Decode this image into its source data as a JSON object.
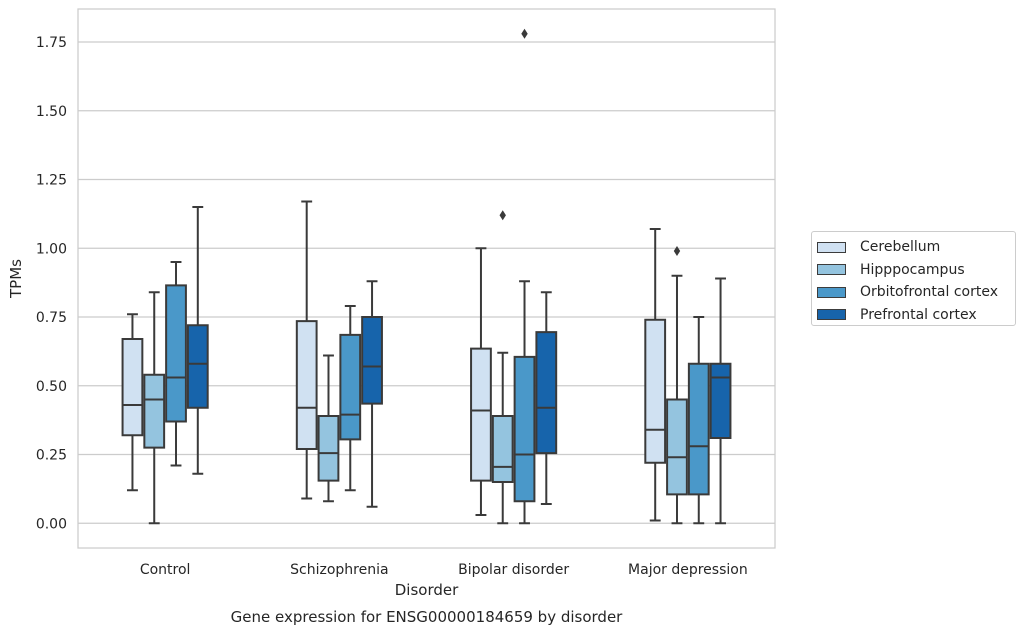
{
  "chart_data": {
    "type": "box",
    "title": "Gene expression for ENSG00000184659 by disorder",
    "xlabel": "Disorder",
    "ylabel": "TPMs",
    "ylim": [
      -0.09,
      1.87
    ],
    "yticks": [
      "0.00",
      "0.25",
      "0.50",
      "0.75",
      "1.00",
      "1.25",
      "1.50",
      "1.75"
    ],
    "categories": [
      "Control",
      "Schizophrenia",
      "Bipolar disorder",
      "Major depression"
    ],
    "grid": "horizontal",
    "legend_position": "right",
    "series": [
      {
        "name": "Cerebellum",
        "color": "#d0e1f2",
        "boxes": [
          {
            "whisker_low": 0.12,
            "q1": 0.32,
            "median": 0.43,
            "q3": 0.67,
            "whisker_high": 0.76,
            "outliers": []
          },
          {
            "whisker_low": 0.09,
            "q1": 0.27,
            "median": 0.42,
            "q3": 0.735,
            "whisker_high": 1.17,
            "outliers": []
          },
          {
            "whisker_low": 0.03,
            "q1": 0.155,
            "median": 0.41,
            "q3": 0.635,
            "whisker_high": 1.0,
            "outliers": []
          },
          {
            "whisker_low": 0.01,
            "q1": 0.22,
            "median": 0.34,
            "q3": 0.74,
            "whisker_high": 1.07,
            "outliers": []
          }
        ]
      },
      {
        "name": "Hipppocampus",
        "color": "#94c4df",
        "boxes": [
          {
            "whisker_low": 0.0,
            "q1": 0.275,
            "median": 0.45,
            "q3": 0.54,
            "whisker_high": 0.84,
            "outliers": []
          },
          {
            "whisker_low": 0.08,
            "q1": 0.155,
            "median": 0.255,
            "q3": 0.39,
            "whisker_high": 0.61,
            "outliers": []
          },
          {
            "whisker_low": 0.0,
            "q1": 0.15,
            "median": 0.205,
            "q3": 0.39,
            "whisker_high": 0.62,
            "outliers": [
              1.12
            ]
          },
          {
            "whisker_low": 0.0,
            "q1": 0.105,
            "median": 0.24,
            "q3": 0.45,
            "whisker_high": 0.9,
            "outliers": [
              0.99
            ]
          }
        ]
      },
      {
        "name": "Orbitofrontal cortex",
        "color": "#4a98c9",
        "boxes": [
          {
            "whisker_low": 0.21,
            "q1": 0.37,
            "median": 0.53,
            "q3": 0.865,
            "whisker_high": 0.95,
            "outliers": []
          },
          {
            "whisker_low": 0.12,
            "q1": 0.305,
            "median": 0.395,
            "q3": 0.685,
            "whisker_high": 0.79,
            "outliers": []
          },
          {
            "whisker_low": 0.0,
            "q1": 0.08,
            "median": 0.25,
            "q3": 0.605,
            "whisker_high": 0.88,
            "outliers": [
              1.78
            ]
          },
          {
            "whisker_low": 0.0,
            "q1": 0.105,
            "median": 0.28,
            "q3": 0.58,
            "whisker_high": 0.75,
            "outliers": []
          }
        ]
      },
      {
        "name": "Prefrontal cortex",
        "color": "#1764ab",
        "boxes": [
          {
            "whisker_low": 0.18,
            "q1": 0.42,
            "median": 0.58,
            "q3": 0.72,
            "whisker_high": 1.15,
            "outliers": []
          },
          {
            "whisker_low": 0.06,
            "q1": 0.435,
            "median": 0.57,
            "q3": 0.75,
            "whisker_high": 0.88,
            "outliers": []
          },
          {
            "whisker_low": 0.07,
            "q1": 0.255,
            "median": 0.42,
            "q3": 0.695,
            "whisker_high": 0.84,
            "outliers": []
          },
          {
            "whisker_low": 0.0,
            "q1": 0.31,
            "median": 0.53,
            "q3": 0.58,
            "whisker_high": 0.89,
            "outliers": []
          }
        ]
      }
    ]
  }
}
